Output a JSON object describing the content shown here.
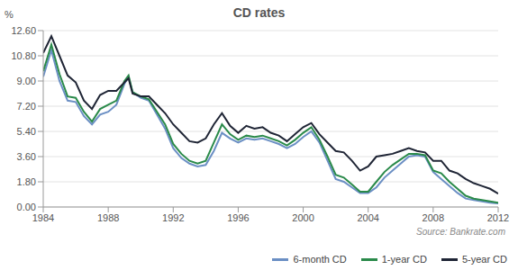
{
  "chart_data": {
    "type": "line",
    "title": "CD rates",
    "y_label": "%",
    "annotation": "Source: Bankrate.com",
    "x": [
      1984.0,
      1984.5,
      1985.0,
      1985.5,
      1986.0,
      1986.5,
      1987.0,
      1987.5,
      1988.0,
      1988.5,
      1989.0,
      1989.25,
      1989.5,
      1990.0,
      1990.5,
      1991.0,
      1991.5,
      1992.0,
      1992.5,
      1993.0,
      1993.5,
      1994.0,
      1994.5,
      1995.0,
      1995.5,
      1996.0,
      1996.5,
      1997.0,
      1997.5,
      1998.0,
      1998.5,
      1999.0,
      1999.5,
      2000.0,
      2000.5,
      2001.0,
      2001.5,
      2002.0,
      2002.5,
      2003.0,
      2003.5,
      2004.0,
      2004.5,
      2005.0,
      2005.5,
      2006.0,
      2006.5,
      2007.0,
      2007.5,
      2008.0,
      2008.5,
      2009.0,
      2009.5,
      2010.0,
      2010.5,
      2011.0,
      2011.5,
      2012.0
    ],
    "series": [
      {
        "name": "6-month CD",
        "color": "#6b8fc4",
        "values": [
          9.3,
          11.2,
          9.0,
          7.6,
          7.5,
          6.5,
          5.9,
          6.6,
          6.8,
          7.3,
          8.8,
          9.3,
          8.2,
          7.8,
          7.6,
          6.6,
          5.6,
          4.2,
          3.5,
          3.1,
          2.9,
          3.0,
          4.0,
          5.3,
          4.9,
          4.6,
          4.9,
          4.8,
          4.9,
          4.7,
          4.5,
          4.2,
          4.5,
          5.0,
          5.4,
          4.6,
          3.3,
          2.0,
          1.8,
          1.4,
          1.0,
          1.0,
          1.4,
          2.1,
          2.6,
          3.1,
          3.6,
          3.7,
          3.6,
          2.5,
          2.0,
          1.5,
          1.0,
          0.6,
          0.5,
          0.4,
          0.3,
          0.25
        ]
      },
      {
        "name": "1-year CD",
        "color": "#2a8a4a",
        "values": [
          9.7,
          11.6,
          9.5,
          7.9,
          7.8,
          6.8,
          6.1,
          7.0,
          7.3,
          7.6,
          9.0,
          9.4,
          8.2,
          7.9,
          7.7,
          6.8,
          5.9,
          4.5,
          3.8,
          3.3,
          3.1,
          3.3,
          4.6,
          5.9,
          5.2,
          4.8,
          5.1,
          5.0,
          5.1,
          4.9,
          4.7,
          4.4,
          4.8,
          5.3,
          5.7,
          4.8,
          3.6,
          2.3,
          2.1,
          1.6,
          1.1,
          1.1,
          1.8,
          2.5,
          3.0,
          3.4,
          3.8,
          3.8,
          3.7,
          2.6,
          2.4,
          1.8,
          1.3,
          0.8,
          0.6,
          0.5,
          0.4,
          0.3
        ]
      },
      {
        "name": "5-year CD",
        "color": "#1f2535",
        "values": [
          11.0,
          12.2,
          10.8,
          9.4,
          8.9,
          7.6,
          7.0,
          8.0,
          8.3,
          8.3,
          8.9,
          9.2,
          8.1,
          7.9,
          7.9,
          7.3,
          6.7,
          5.9,
          5.3,
          4.7,
          4.6,
          4.9,
          5.9,
          6.7,
          5.8,
          5.3,
          5.8,
          5.6,
          5.7,
          5.3,
          5.1,
          4.7,
          5.2,
          5.7,
          6.0,
          5.2,
          4.6,
          4.0,
          3.9,
          3.3,
          2.6,
          2.9,
          3.6,
          3.7,
          3.8,
          4.0,
          4.2,
          4.0,
          3.9,
          3.3,
          3.3,
          2.6,
          2.4,
          2.0,
          1.7,
          1.5,
          1.3,
          0.95
        ]
      }
    ],
    "xlim": [
      1984,
      2012
    ],
    "xticks": [
      1984,
      1988,
      1992,
      1996,
      2000,
      2004,
      2008,
      2012
    ],
    "ylim": [
      0,
      12.6
    ],
    "yticks": [
      {
        "value": 0,
        "label": "0.00"
      },
      {
        "value": 1.8,
        "label": "1.80"
      },
      {
        "value": 3.6,
        "label": "3.60"
      },
      {
        "value": 5.4,
        "label": "5.40"
      },
      {
        "value": 7.2,
        "label": "7.20"
      },
      {
        "value": 9,
        "label": "9.00"
      },
      {
        "value": 10.8,
        "label": "10.80"
      },
      {
        "value": 12.6,
        "label": "12.60"
      }
    ],
    "grid": true,
    "legend": "bottom-right"
  }
}
